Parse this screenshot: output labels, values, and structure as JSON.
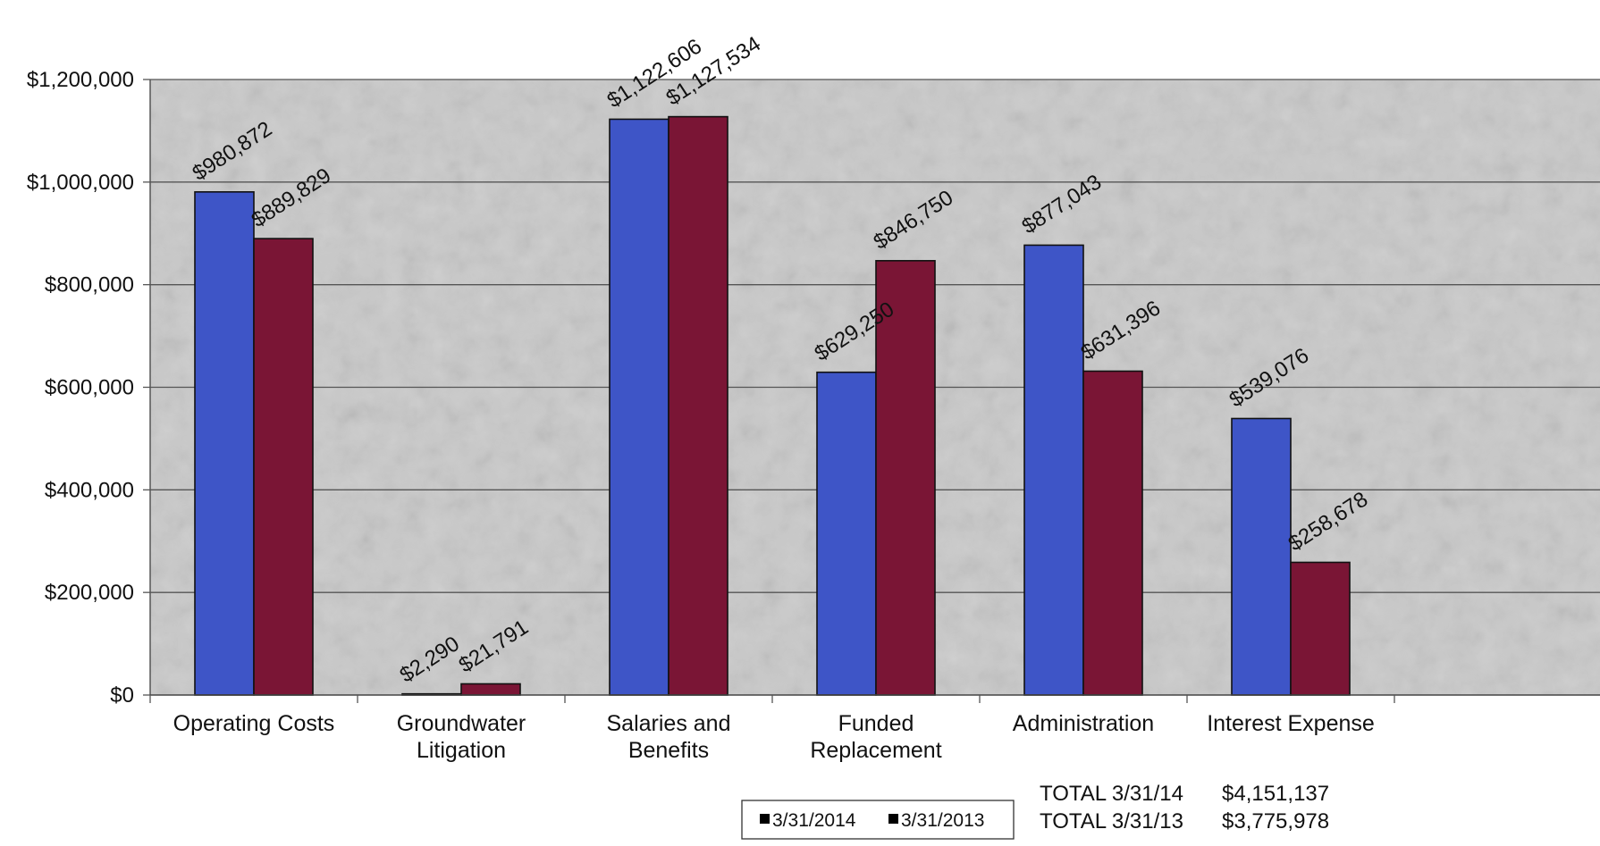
{
  "chart_data": {
    "type": "bar",
    "categories": [
      [
        "Operating Costs"
      ],
      [
        "Groundwater",
        "Litigation"
      ],
      [
        "Salaries and",
        "Benefits"
      ],
      [
        "Funded",
        "Replacement"
      ],
      [
        "Administration"
      ],
      [
        "Interest Expense"
      ]
    ],
    "series": [
      {
        "name": "3/31/2014",
        "color": "#3e55c7",
        "values": [
          980872,
          2290,
          1122606,
          629250,
          877043,
          539076
        ],
        "labels": [
          "$980,872",
          "$2,290",
          "$1,122,606",
          "$629,250",
          "$877,043",
          "$539,076"
        ]
      },
      {
        "name": "3/31/2013",
        "color": "#7a1535",
        "values": [
          889829,
          21791,
          1127534,
          846750,
          631396,
          258678
        ],
        "labels": [
          "$889,829",
          "$21,791",
          "$1,127,534",
          "$846,750",
          "$631,396",
          "$258,678"
        ]
      }
    ],
    "ylim": [
      0,
      1200000
    ],
    "yticks": [
      0,
      200000,
      400000,
      600000,
      800000,
      1000000,
      1200000
    ],
    "ytick_labels": [
      "$0",
      "$200,000",
      "$400,000",
      "$600,000",
      "$800,000",
      "$1,000,000",
      "$1,200,000"
    ],
    "grid": true,
    "legend_placement": "bottom-center",
    "plot_background": "#c9c9c9",
    "totals": [
      {
        "label": "TOTAL 3/31/14",
        "value": "$4,151,137"
      },
      {
        "label": "TOTAL 3/31/13",
        "value": "$3,775,978"
      }
    ]
  }
}
